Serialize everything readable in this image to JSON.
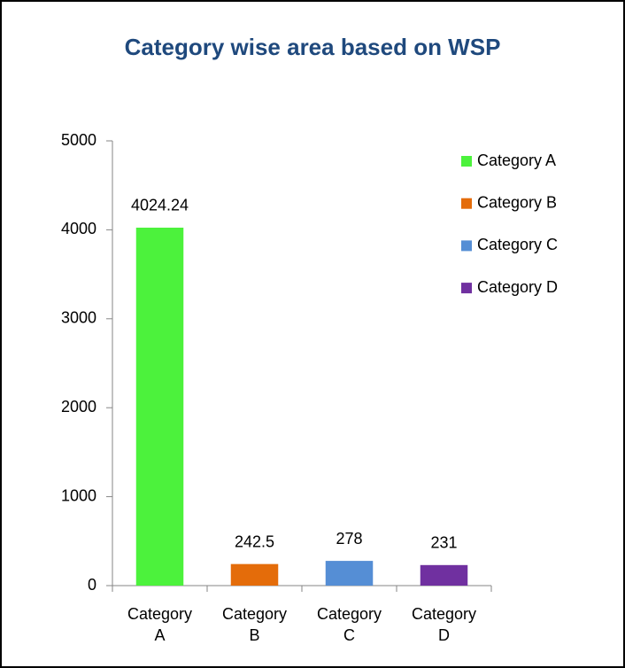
{
  "chart_data": {
    "type": "bar",
    "title": "Category wise area based on WSP",
    "categories": [
      "Category A",
      "Category B",
      "Category C",
      "Category D"
    ],
    "values": [
      4024.24,
      242.5,
      278,
      231
    ],
    "colors": [
      "#4cf23c",
      "#e46c0a",
      "#558ed5",
      "#7030a0"
    ],
    "ylim": [
      0,
      5000
    ],
    "yticks": [
      0,
      1000,
      2000,
      3000,
      4000,
      5000
    ],
    "grid": false,
    "legend": "top-right",
    "data_labels": true
  }
}
